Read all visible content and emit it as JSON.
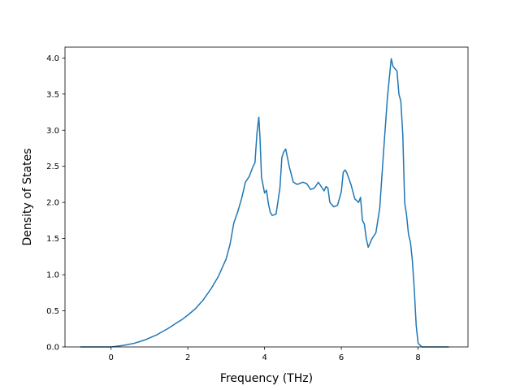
{
  "chart_data": {
    "type": "line",
    "title": "",
    "xlabel": "Frequency (THz)",
    "ylabel": "Density of States",
    "xlim": [
      -1.2,
      9.3
    ],
    "ylim": [
      0,
      4.15
    ],
    "xticks": [
      0,
      2,
      4,
      6,
      8
    ],
    "yticks": [
      0.0,
      0.5,
      1.0,
      1.5,
      2.0,
      2.5,
      3.0,
      3.5,
      4.0
    ],
    "xtick_labels": [
      "0",
      "2",
      "4",
      "6",
      "8"
    ],
    "ytick_labels": [
      "0.0",
      "0.5",
      "1.0",
      "1.5",
      "2.0",
      "2.5",
      "3.0",
      "3.5",
      "4.0"
    ],
    "grid": false,
    "series": [
      {
        "color": "#1f77b4",
        "x": [
          -0.8,
          -0.5,
          0.0,
          0.3,
          0.6,
          0.9,
          1.2,
          1.5,
          1.7,
          1.85,
          2.0,
          2.2,
          2.4,
          2.6,
          2.8,
          3.0,
          3.1,
          3.2,
          3.3,
          3.4,
          3.5,
          3.6,
          3.7,
          3.75,
          3.8,
          3.85,
          3.88,
          3.92,
          4.0,
          4.05,
          4.1,
          4.15,
          4.2,
          4.3,
          4.4,
          4.45,
          4.5,
          4.55,
          4.65,
          4.75,
          4.85,
          5.0,
          5.1,
          5.2,
          5.3,
          5.4,
          5.5,
          5.55,
          5.6,
          5.65,
          5.7,
          5.8,
          5.9,
          6.0,
          6.05,
          6.1,
          6.15,
          6.25,
          6.35,
          6.45,
          6.5,
          6.55,
          6.6,
          6.65,
          6.7,
          6.8,
          6.9,
          7.0,
          7.1,
          7.2,
          7.3,
          7.35,
          7.45,
          7.5,
          7.55,
          7.6,
          7.65,
          7.7,
          7.75,
          7.8,
          7.85,
          7.9,
          7.95,
          8.0,
          8.1,
          8.8
        ],
        "y": [
          0.0,
          0.0,
          0.0,
          0.02,
          0.05,
          0.1,
          0.17,
          0.26,
          0.33,
          0.38,
          0.44,
          0.53,
          0.65,
          0.8,
          0.98,
          1.22,
          1.42,
          1.72,
          1.87,
          2.05,
          2.28,
          2.36,
          2.5,
          2.55,
          2.95,
          3.18,
          2.9,
          2.35,
          2.13,
          2.17,
          1.98,
          1.86,
          1.82,
          1.84,
          2.2,
          2.62,
          2.7,
          2.74,
          2.48,
          2.28,
          2.25,
          2.28,
          2.26,
          2.18,
          2.2,
          2.28,
          2.2,
          2.16,
          2.22,
          2.2,
          2.0,
          1.94,
          1.96,
          2.15,
          2.42,
          2.45,
          2.4,
          2.25,
          2.05,
          2.0,
          2.07,
          1.75,
          1.7,
          1.5,
          1.38,
          1.5,
          1.58,
          1.92,
          2.7,
          3.45,
          3.99,
          3.88,
          3.82,
          3.5,
          3.4,
          2.95,
          2.0,
          1.82,
          1.56,
          1.45,
          1.2,
          0.8,
          0.3,
          0.05,
          0.0,
          0.0
        ]
      }
    ]
  }
}
